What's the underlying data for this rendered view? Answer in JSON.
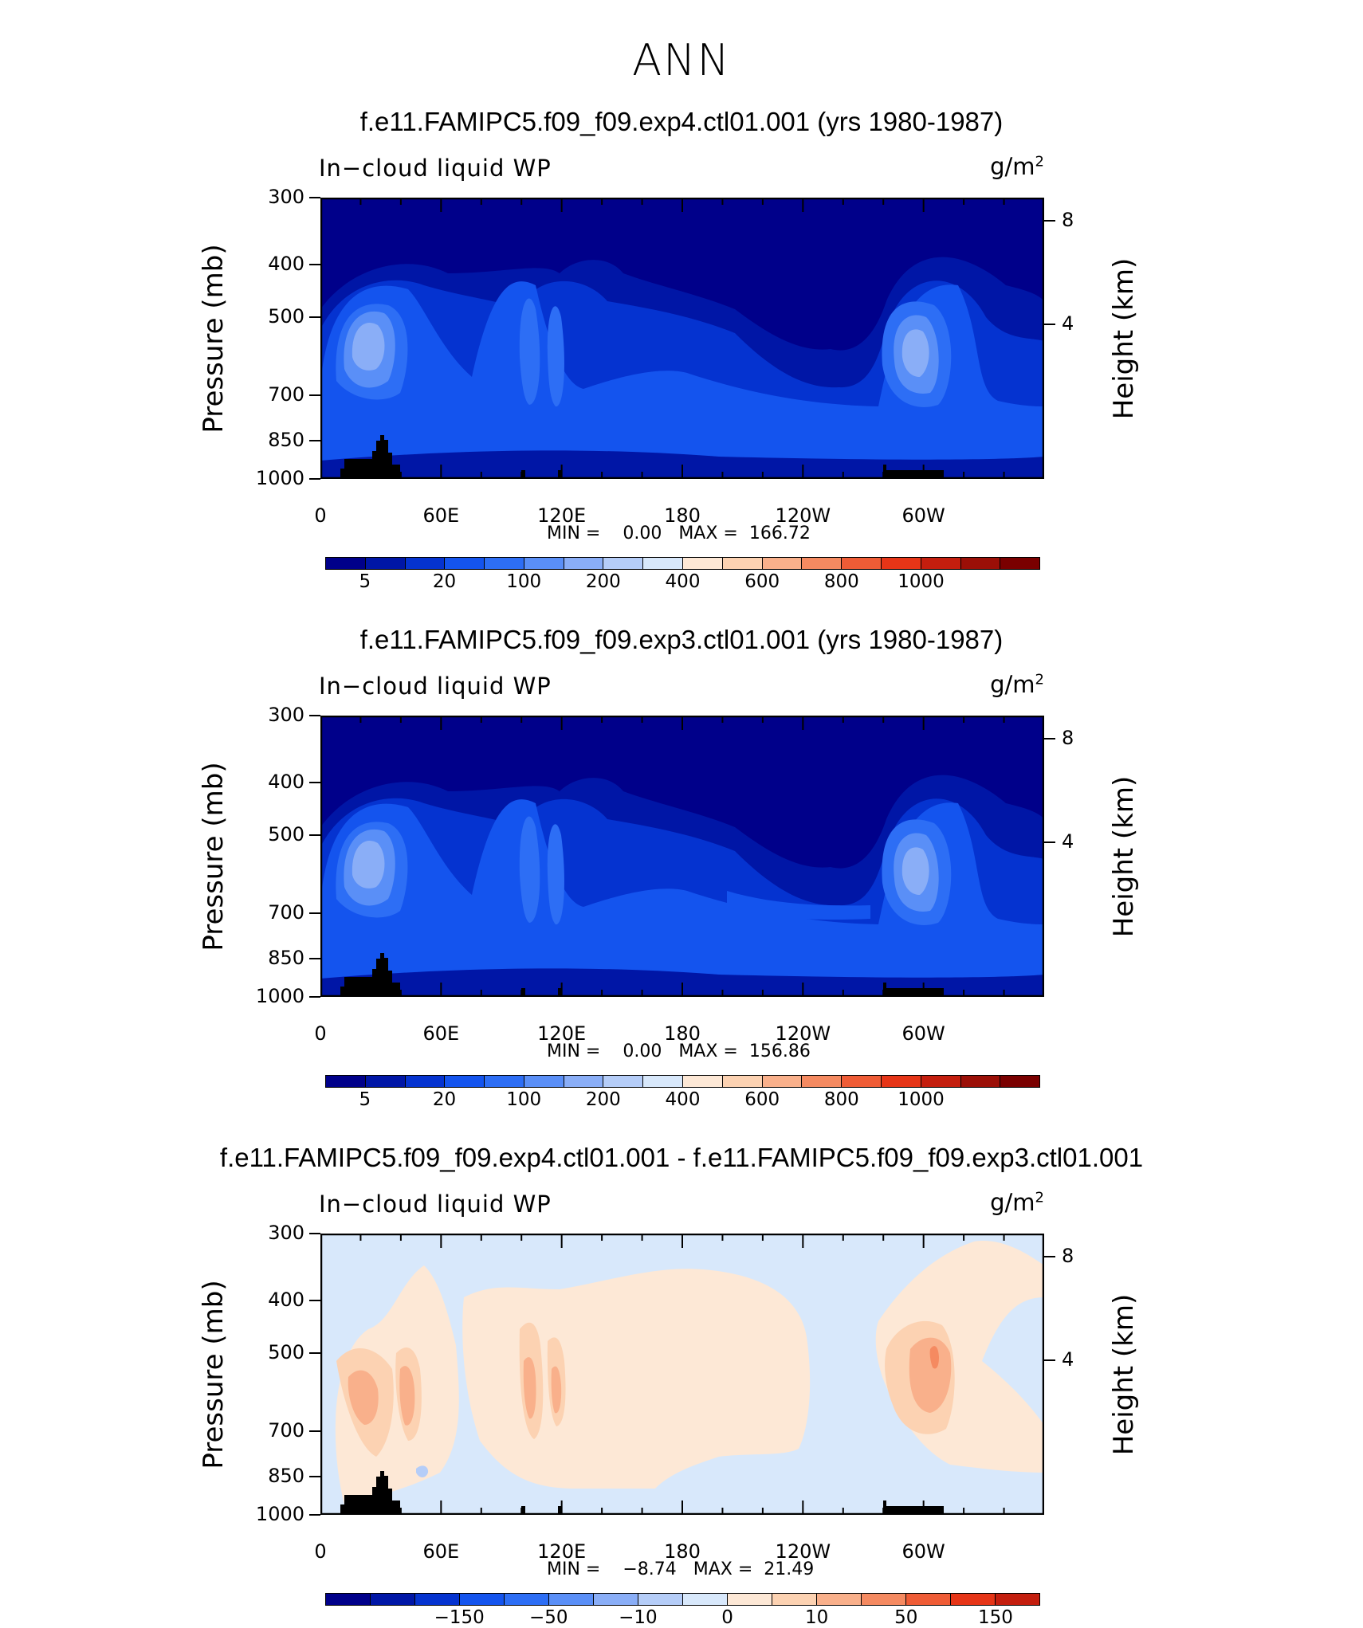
{
  "figure": {
    "title": "ANN"
  },
  "panels": [
    {
      "title": "f.e11.FAMIPC5.f09_f09.exp4.ctl01.001 (yrs 1980-1987)",
      "variable": "In−cloud liquid WP",
      "units": "g/m",
      "units_sup": "2",
      "min_label": "MIN =",
      "min_value": "0.00",
      "max_label": "MAX =",
      "max_value": "166.72",
      "colorbar_labels": [
        "5",
        "20",
        "100",
        "200",
        "400",
        "600",
        "800",
        "1000"
      ],
      "colorbar": "sequential"
    },
    {
      "title": "f.e11.FAMIPC5.f09_f09.exp3.ctl01.001 (yrs 1980-1987)",
      "variable": "In−cloud liquid WP",
      "units": "g/m",
      "units_sup": "2",
      "min_label": "MIN =",
      "min_value": "0.00",
      "max_label": "MAX =",
      "max_value": "156.86",
      "colorbar_labels": [
        "5",
        "20",
        "100",
        "200",
        "400",
        "600",
        "800",
        "1000"
      ],
      "colorbar": "sequential"
    },
    {
      "title": "f.e11.FAMIPC5.f09_f09.exp4.ctl01.001 - f.e11.FAMIPC5.f09_f09.exp3.ctl01.001",
      "variable": "In−cloud liquid WP",
      "units": "g/m",
      "units_sup": "2",
      "min_label": "MIN =",
      "min_value": "−8.74",
      "max_label": "MAX =",
      "max_value": "21.49",
      "colorbar_labels": [
        "−150",
        "−50",
        "−10",
        "0",
        "10",
        "50",
        "150"
      ],
      "colorbar": "diverging"
    }
  ],
  "axes": {
    "ylabel": "Pressure (mb)",
    "y2label": "Height (km)",
    "yticks": [
      "300",
      "400",
      "500",
      "700",
      "850",
      "1000"
    ],
    "y2ticks": [
      "8",
      "4"
    ],
    "xticks": [
      "0",
      "60E",
      "120E",
      "180",
      "120W",
      "60W"
    ]
  },
  "colors": {
    "sequential": [
      "#00008a",
      "#0016a6",
      "#0533d0",
      "#1454ee",
      "#2d6ef5",
      "#5a8ff7",
      "#8aaef7",
      "#b5cdf8",
      "#d8e8fb",
      "#fde8d6",
      "#fcd2b2",
      "#f9b08b",
      "#f58a61",
      "#ef5c36",
      "#e63517",
      "#c41e0e",
      "#9b0f07",
      "#7a0000"
    ],
    "diverging": [
      "#00008a",
      "#0016a6",
      "#0533d0",
      "#1454ee",
      "#2d6ef5",
      "#5a8ff7",
      "#8aaef7",
      "#b5cdf8",
      "#d8e8fb",
      "#fde8d6",
      "#fcd2b2",
      "#f9b08b",
      "#f58a61",
      "#ef5c36",
      "#e63517",
      "#c41e0e"
    ]
  },
  "chart_data": [
    {
      "type": "heatmap",
      "title": "f.e11.FAMIPC5.f09_f09.exp4.ctl01.001 (yrs 1980-1987)",
      "subtitle": "In−cloud liquid WP",
      "units": "g/m2",
      "xlabel": "",
      "ylabel": "Pressure (mb)",
      "y2label": "Height (km)",
      "x_ticks": [
        "0",
        "60E",
        "120E",
        "180",
        "120W",
        "60W"
      ],
      "y_ticks": [
        300,
        400,
        500,
        700,
        850,
        1000
      ],
      "y2_ticks": [
        8,
        4
      ],
      "levels": [
        5,
        20,
        100,
        200,
        400,
        600,
        800,
        1000
      ],
      "min": 0.0,
      "max": 166.72,
      "features": [
        {
          "lon": 25,
          "p": 680,
          "level": "max band (~100)"
        },
        {
          "lon": 290,
          "p": 690,
          "level": "max band (~100)"
        },
        {
          "lon": 100,
          "p": 680,
          "level": "~50-100"
        },
        {
          "lon": 230,
          "p": 720,
          "level": "~10 minimum (subsidence)"
        }
      ]
    },
    {
      "type": "heatmap",
      "title": "f.e11.FAMIPC5.f09_f09.exp3.ctl01.001 (yrs 1980-1987)",
      "subtitle": "In−cloud liquid WP",
      "units": "g/m2",
      "xlabel": "",
      "ylabel": "Pressure (mb)",
      "y2label": "Height (km)",
      "x_ticks": [
        "0",
        "60E",
        "120E",
        "180",
        "120W",
        "60W"
      ],
      "y_ticks": [
        300,
        400,
        500,
        700,
        850,
        1000
      ],
      "y2_ticks": [
        8,
        4
      ],
      "levels": [
        5,
        20,
        100,
        200,
        400,
        600,
        800,
        1000
      ],
      "min": 0.0,
      "max": 156.86
    },
    {
      "type": "heatmap",
      "title": "f.e11.FAMIPC5.f09_f09.exp4.ctl01.001 - f.e11.FAMIPC5.f09_f09.exp3.ctl01.001",
      "subtitle": "In−cloud liquid WP",
      "units": "g/m2",
      "xlabel": "",
      "ylabel": "Pressure (mb)",
      "y2label": "Height (km)",
      "x_ticks": [
        "0",
        "60E",
        "120E",
        "180",
        "120W",
        "60W"
      ],
      "y_ticks": [
        300,
        400,
        500,
        700,
        850,
        1000
      ],
      "y2_ticks": [
        8,
        4
      ],
      "levels": [
        -150,
        -50,
        -10,
        0,
        10,
        50,
        150
      ],
      "min": -8.74,
      "max": 21.49
    }
  ]
}
